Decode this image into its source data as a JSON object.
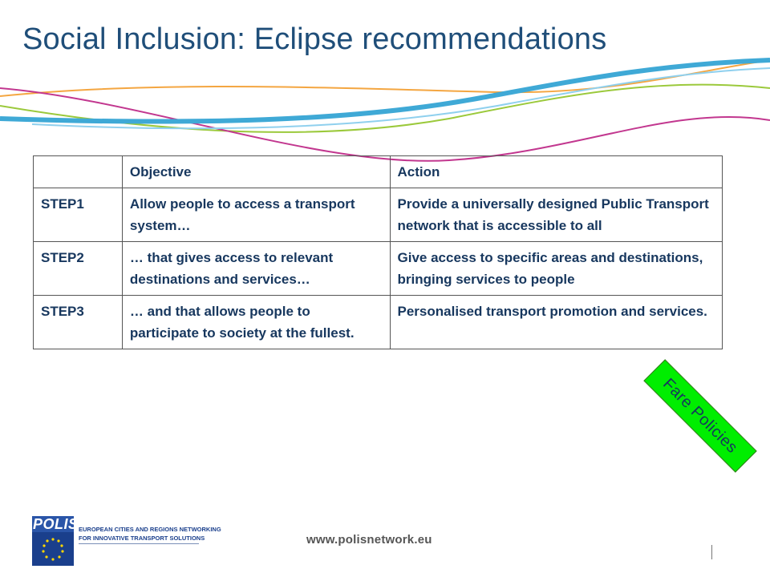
{
  "slide": {
    "title": "Social Inclusion: Eclipse recommendations"
  },
  "table": {
    "headers": [
      "",
      "Objective",
      "Action"
    ],
    "rows": [
      {
        "step": "STEP1",
        "objective": "Allow people to access a transport system…",
        "action": "Provide a universally designed Public Transport network that is accessible to all"
      },
      {
        "step": "STEP2",
        "objective": "… that gives access to relevant destinations and services…",
        "action": "Give access to specific areas and destinations, bringing services to people"
      },
      {
        "step": "STEP3",
        "objective": "… and that allows people to participate to society at the fullest.",
        "action": "Personalised transport promotion and services."
      }
    ]
  },
  "badge": {
    "label": "Fare Policies",
    "color": "#00ee00"
  },
  "footer": {
    "logo_word": "POLIS",
    "logo_text_line1": "EUROPEAN CITIES AND REGIONS NETWORKING",
    "logo_text_line2": "FOR INNOVATIVE TRANSPORT SOLUTIONS",
    "website": "www.polisnetwork.eu"
  },
  "colors": {
    "title": "#1f4e79",
    "text": "#17375e",
    "wave_blue": "#3fa9d6",
    "wave_orange": "#f4a641",
    "wave_magenta": "#c2378f",
    "wave_green": "#9bc93b"
  }
}
